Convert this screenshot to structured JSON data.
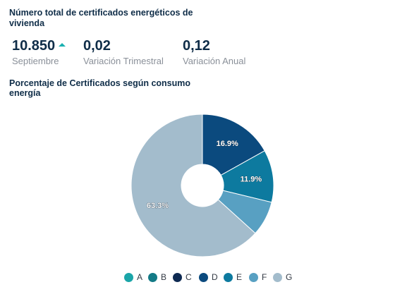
{
  "header": {
    "title": "Número total de certificados energéticos de vivienda"
  },
  "kpis": {
    "total": {
      "value": "10.850",
      "label": "Septiembre",
      "trend": "up"
    },
    "quarterly": {
      "value": "0,02",
      "label": "Variación Trimestral"
    },
    "annual": {
      "value": "0,12",
      "label": "Variación Anual"
    }
  },
  "chart_data": {
    "type": "pie",
    "style": "donut",
    "title": "Porcentaje de Certificados según consumo energía",
    "categories": [
      "A",
      "B",
      "C",
      "D",
      "E",
      "F",
      "G"
    ],
    "values": [
      0,
      0,
      0,
      16.9,
      11.9,
      7.9,
      63.3
    ],
    "data_labels": [
      "",
      "",
      "",
      "16.9%",
      "11.9%",
      "",
      "63.3%"
    ],
    "colors": [
      "#1aa5a8",
      "#137a86",
      "#0e2a52",
      "#0b4a7e",
      "#0d7a9f",
      "#58a0c2",
      "#a3bccc"
    ],
    "legend": "bottom",
    "legend_colors": [
      "#1aa5a8",
      "#137a86",
      "#0e2a52",
      "#0b4a7e",
      "#0d7a9f",
      "#58a0c2",
      "#a3bccc"
    ]
  }
}
